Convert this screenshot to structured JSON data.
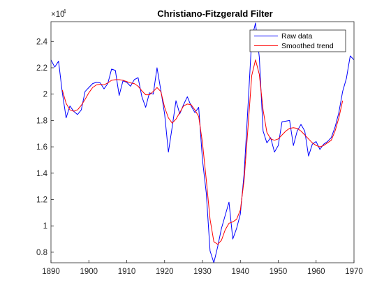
{
  "chart_data": {
    "type": "line",
    "title": "Christiano-Fitzgerald  Filter",
    "xlabel": "",
    "ylabel": "",
    "y_exponent_label": "×10",
    "y_exponent": "4",
    "xlim": [
      1890,
      1970
    ],
    "ylim": [
      7200,
      25500
    ],
    "x_ticks": [
      1890,
      1900,
      1910,
      1920,
      1930,
      1940,
      1950,
      1960,
      1970
    ],
    "x_tick_labels": [
      "1890",
      "1900",
      "1910",
      "1920",
      "1930",
      "1940",
      "1950",
      "1960",
      "1970"
    ],
    "y_ticks": [
      8000,
      10000,
      12000,
      14000,
      16000,
      18000,
      20000,
      22000,
      24000
    ],
    "y_tick_labels": [
      "0.8",
      "1",
      "1.2",
      "1.4",
      "1.6",
      "1.8",
      "2",
      "2.2",
      "2.4"
    ],
    "grid": false,
    "legend_position": "top-right",
    "x": [
      1890,
      1891,
      1892,
      1893,
      1894,
      1895,
      1896,
      1897,
      1898,
      1899,
      1900,
      1901,
      1902,
      1903,
      1904,
      1905,
      1906,
      1907,
      1908,
      1909,
      1910,
      1911,
      1912,
      1913,
      1914,
      1915,
      1916,
      1917,
      1918,
      1919,
      1920,
      1921,
      1922,
      1923,
      1924,
      1925,
      1926,
      1927,
      1928,
      1929,
      1930,
      1931,
      1932,
      1933,
      1934,
      1935,
      1936,
      1937,
      1938,
      1939,
      1940,
      1941,
      1942,
      1943,
      1944,
      1945,
      1946,
      1947,
      1948,
      1949,
      1950,
      1951,
      1952,
      1953,
      1954,
      1955,
      1956,
      1957,
      1958,
      1959,
      1960,
      1961,
      1962,
      1963,
      1964,
      1965,
      1966,
      1967,
      1968,
      1969,
      1970
    ],
    "series": [
      {
        "name": "Raw data",
        "color": "#0000ff",
        "values": [
          22600,
          22050,
          22500,
          20100,
          18200,
          19100,
          18700,
          18450,
          18800,
          20200,
          20500,
          20800,
          20900,
          20850,
          20400,
          20800,
          21900,
          21800,
          19900,
          21000,
          20900,
          20600,
          21100,
          21250,
          19800,
          19000,
          20100,
          20000,
          22000,
          20300,
          18500,
          15600,
          17500,
          19500,
          18500,
          19200,
          19800,
          19100,
          18600,
          19000,
          15000,
          12500,
          8100,
          7200,
          8400,
          9800,
          10800,
          11800,
          9000,
          9800,
          10900,
          14000,
          19000,
          24200,
          25400,
          22800,
          17200,
          16300,
          16700,
          15600,
          16100,
          17900,
          17950,
          18000,
          16100,
          17200,
          17700,
          17200,
          15300,
          16200,
          16400,
          15800,
          16200,
          16400,
          16700,
          17500,
          18600,
          20200,
          21200,
          22900,
          22600
        ]
      },
      {
        "name": "Smoothed trend",
        "color": "#ff0000",
        "values": [
          null,
          null,
          null,
          20300,
          19300,
          18800,
          18700,
          18800,
          19150,
          19600,
          20100,
          20500,
          20700,
          20750,
          20700,
          20850,
          21050,
          21100,
          21100,
          21050,
          20950,
          20850,
          20800,
          20600,
          20250,
          19950,
          19950,
          20200,
          20500,
          20200,
          19000,
          18200,
          17800,
          18100,
          18600,
          19100,
          19250,
          19200,
          18800,
          18300,
          16300,
          13500,
          10500,
          8800,
          8600,
          8900,
          9700,
          10200,
          10300,
          10500,
          11200,
          13500,
          17400,
          21400,
          22600,
          21500,
          18800,
          17100,
          16600,
          16500,
          16600,
          16900,
          17200,
          17400,
          17450,
          17400,
          17200,
          16900,
          16600,
          16300,
          16100,
          16000,
          16100,
          16300,
          16500,
          17200,
          18200,
          19500,
          null,
          null,
          null
        ]
      }
    ]
  }
}
